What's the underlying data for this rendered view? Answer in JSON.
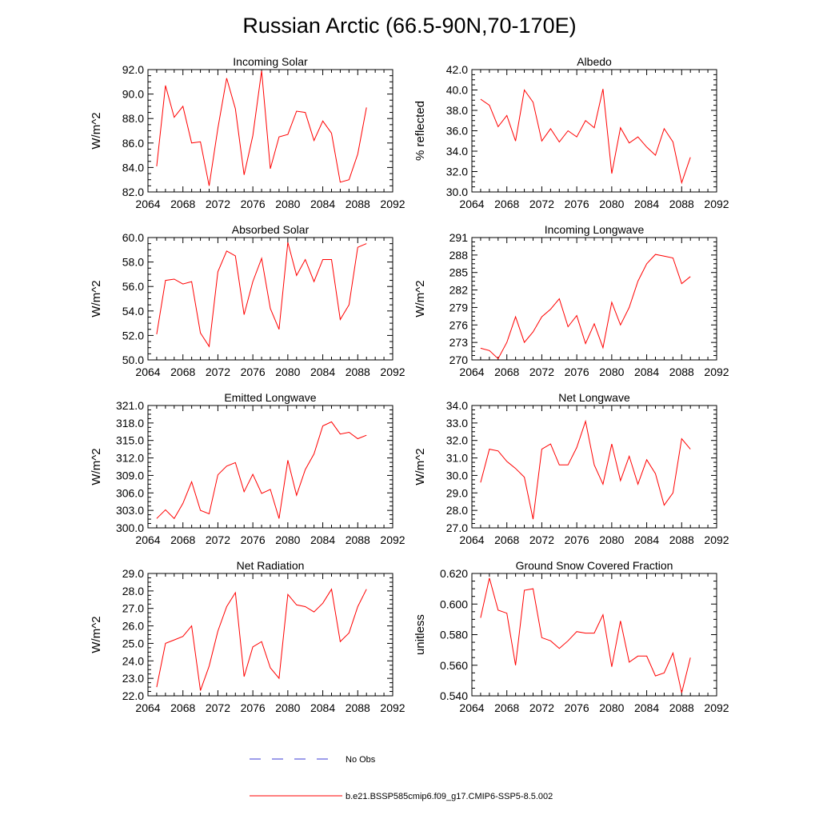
{
  "page": {
    "title": "Russian Arctic (66.5-90N,70-170E)"
  },
  "colors": {
    "series": "#ff0000",
    "obs": "#3b3bd6",
    "axis": "#000000"
  },
  "legend": {
    "obs_label": "No Obs",
    "series_label": "b.e21.BSSP585cmip6.f09_g17.CMIP6-SSP5-8.5.002"
  },
  "chart_data": [
    {
      "type": "line",
      "title": "Incoming Solar",
      "ylabel": "W/m^2",
      "xlim": [
        2064,
        2092
      ],
      "ylim": [
        82.0,
        92.0
      ],
      "xticks": [
        2064,
        2068,
        2072,
        2076,
        2080,
        2084,
        2088,
        2092
      ],
      "yticks": [
        "82.0",
        "84.0",
        "86.0",
        "88.0",
        "90.0",
        "92.0"
      ],
      "x": [
        2065,
        2066,
        2067,
        2068,
        2069,
        2070,
        2071,
        2072,
        2073,
        2074,
        2075,
        2076,
        2077,
        2078,
        2079,
        2080,
        2081,
        2082,
        2083,
        2084,
        2085,
        2086,
        2087,
        2088,
        2089
      ],
      "y": [
        84.1,
        90.7,
        88.1,
        89.0,
        86.0,
        86.1,
        82.5,
        87.2,
        91.3,
        88.8,
        83.4,
        86.6,
        91.9,
        83.9,
        86.5,
        86.7,
        88.6,
        88.5,
        86.2,
        87.8,
        86.8,
        82.8,
        83.0,
        85.1,
        88.9
      ]
    },
    {
      "type": "line",
      "title": "Albedo",
      "ylabel": "% reflected",
      "xlim": [
        2064,
        2092
      ],
      "ylim": [
        30.0,
        42.0
      ],
      "xticks": [
        2064,
        2068,
        2072,
        2076,
        2080,
        2084,
        2088,
        2092
      ],
      "yticks": [
        "30.0",
        "32.0",
        "34.0",
        "36.0",
        "38.0",
        "40.0",
        "42.0"
      ],
      "x": [
        2065,
        2066,
        2067,
        2068,
        2069,
        2070,
        2071,
        2072,
        2073,
        2074,
        2075,
        2076,
        2077,
        2078,
        2079,
        2080,
        2081,
        2082,
        2083,
        2084,
        2085,
        2086,
        2087,
        2088,
        2089
      ],
      "y": [
        39.1,
        38.5,
        36.4,
        37.5,
        35.0,
        40.0,
        38.8,
        35.0,
        36.2,
        34.9,
        36.0,
        35.4,
        37.0,
        36.3,
        40.1,
        31.8,
        36.3,
        34.8,
        35.4,
        34.4,
        33.6,
        36.2,
        34.9,
        30.9,
        33.4
      ]
    },
    {
      "type": "line",
      "title": "Absorbed Solar",
      "ylabel": "W/m^2",
      "xlim": [
        2064,
        2092
      ],
      "ylim": [
        50.0,
        60.0
      ],
      "xticks": [
        2064,
        2068,
        2072,
        2076,
        2080,
        2084,
        2088,
        2092
      ],
      "yticks": [
        "50.0",
        "52.0",
        "54.0",
        "56.0",
        "58.0",
        "60.0"
      ],
      "x": [
        2065,
        2066,
        2067,
        2068,
        2069,
        2070,
        2071,
        2072,
        2073,
        2074,
        2075,
        2076,
        2077,
        2078,
        2079,
        2080,
        2081,
        2082,
        2083,
        2084,
        2085,
        2086,
        2087,
        2088,
        2089
      ],
      "y": [
        52.1,
        56.5,
        56.6,
        56.2,
        56.4,
        52.2,
        51.1,
        57.2,
        58.9,
        58.5,
        53.7,
        56.4,
        58.3,
        54.2,
        52.5,
        59.6,
        56.9,
        58.2,
        56.4,
        58.2,
        58.2,
        53.3,
        54.5,
        59.2,
        59.5
      ]
    },
    {
      "type": "line",
      "title": "Incoming Longwave",
      "ylabel": "W/m^2",
      "xlim": [
        2064,
        2092
      ],
      "ylim": [
        270,
        291
      ],
      "xticks": [
        2064,
        2068,
        2072,
        2076,
        2080,
        2084,
        2088,
        2092
      ],
      "yticks": [
        "270",
        "273",
        "276",
        "279",
        "282",
        "285",
        "288",
        "291"
      ],
      "x": [
        2065,
        2066,
        2067,
        2068,
        2069,
        2070,
        2071,
        2072,
        2073,
        2074,
        2075,
        2076,
        2077,
        2078,
        2079,
        2080,
        2081,
        2082,
        2083,
        2084,
        2085,
        2086,
        2087,
        2088,
        2089
      ],
      "y": [
        272.0,
        271.6,
        270.2,
        273.0,
        277.4,
        273.0,
        274.8,
        277.4,
        278.7,
        280.5,
        275.7,
        277.6,
        272.8,
        276.2,
        272.1,
        279.9,
        276.0,
        279.0,
        283.5,
        286.5,
        288.1,
        287.8,
        287.5,
        283.1,
        284.3
      ]
    },
    {
      "type": "line",
      "title": "Emitted Longwave",
      "ylabel": "W/m^2",
      "xlim": [
        2064,
        2092
      ],
      "ylim": [
        300.0,
        321.0
      ],
      "xticks": [
        2064,
        2068,
        2072,
        2076,
        2080,
        2084,
        2088,
        2092
      ],
      "yticks": [
        "300.0",
        "303.0",
        "306.0",
        "309.0",
        "312.0",
        "315.0",
        "318.0",
        "321.0"
      ],
      "x": [
        2065,
        2066,
        2067,
        2068,
        2069,
        2070,
        2071,
        2072,
        2073,
        2074,
        2075,
        2076,
        2077,
        2078,
        2079,
        2080,
        2081,
        2082,
        2083,
        2084,
        2085,
        2086,
        2087,
        2088,
        2089
      ],
      "y": [
        301.6,
        303.1,
        301.6,
        304.2,
        307.9,
        303.0,
        302.4,
        309.1,
        310.6,
        311.2,
        306.2,
        309.2,
        305.9,
        306.6,
        301.6,
        311.6,
        305.6,
        310.0,
        312.7,
        317.5,
        318.2,
        316.1,
        316.4,
        315.3,
        315.9
      ]
    },
    {
      "type": "line",
      "title": "Net Longwave",
      "ylabel": "W/m^2",
      "xlim": [
        2064,
        2092
      ],
      "ylim": [
        27.0,
        34.0
      ],
      "xticks": [
        2064,
        2068,
        2072,
        2076,
        2080,
        2084,
        2088,
        2092
      ],
      "yticks": [
        "27.0",
        "28.0",
        "29.0",
        "30.0",
        "31.0",
        "32.0",
        "33.0",
        "34.0"
      ],
      "x": [
        2065,
        2066,
        2067,
        2068,
        2069,
        2070,
        2071,
        2072,
        2073,
        2074,
        2075,
        2076,
        2077,
        2078,
        2079,
        2080,
        2081,
        2082,
        2083,
        2084,
        2085,
        2086,
        2087,
        2088,
        2089
      ],
      "y": [
        29.6,
        31.5,
        31.4,
        30.8,
        30.4,
        29.9,
        27.5,
        31.5,
        31.8,
        30.6,
        30.6,
        31.6,
        33.1,
        30.6,
        29.5,
        31.8,
        29.7,
        31.1,
        29.5,
        30.9,
        30.1,
        28.3,
        29.0,
        32.1,
        31.5
      ]
    },
    {
      "type": "line",
      "title": "Net Radiation",
      "ylabel": "W/m^2",
      "xlim": [
        2064,
        2092
      ],
      "ylim": [
        22.0,
        29.0
      ],
      "xticks": [
        2064,
        2068,
        2072,
        2076,
        2080,
        2084,
        2088,
        2092
      ],
      "yticks": [
        "22.0",
        "23.0",
        "24.0",
        "25.0",
        "26.0",
        "27.0",
        "28.0",
        "29.0"
      ],
      "x": [
        2065,
        2066,
        2067,
        2068,
        2069,
        2070,
        2071,
        2072,
        2073,
        2074,
        2075,
        2076,
        2077,
        2078,
        2079,
        2080,
        2081,
        2082,
        2083,
        2084,
        2085,
        2086,
        2087,
        2088,
        2089
      ],
      "y": [
        22.5,
        25.0,
        25.2,
        25.4,
        26.0,
        22.3,
        23.7,
        25.7,
        27.1,
        27.9,
        23.1,
        24.8,
        25.1,
        23.6,
        23.0,
        27.8,
        27.2,
        27.1,
        26.8,
        27.3,
        28.1,
        25.1,
        25.6,
        27.1,
        28.1
      ]
    },
    {
      "type": "line",
      "title": "Ground Snow Covered Fraction",
      "ylabel": "unitless",
      "xlim": [
        2064,
        2092
      ],
      "ylim": [
        0.54,
        0.62
      ],
      "xticks": [
        2064,
        2068,
        2072,
        2076,
        2080,
        2084,
        2088,
        2092
      ],
      "yticks": [
        "0.540",
        "0.560",
        "0.580",
        "0.600",
        "0.620"
      ],
      "x": [
        2065,
        2066,
        2067,
        2068,
        2069,
        2070,
        2071,
        2072,
        2073,
        2074,
        2075,
        2076,
        2077,
        2078,
        2079,
        2080,
        2081,
        2082,
        2083,
        2084,
        2085,
        2086,
        2087,
        2088,
        2089
      ],
      "y": [
        0.591,
        0.617,
        0.596,
        0.594,
        0.56,
        0.609,
        0.61,
        0.578,
        0.576,
        0.571,
        0.576,
        0.582,
        0.581,
        0.581,
        0.593,
        0.559,
        0.589,
        0.562,
        0.566,
        0.566,
        0.553,
        0.555,
        0.568,
        0.542,
        0.565
      ]
    }
  ]
}
